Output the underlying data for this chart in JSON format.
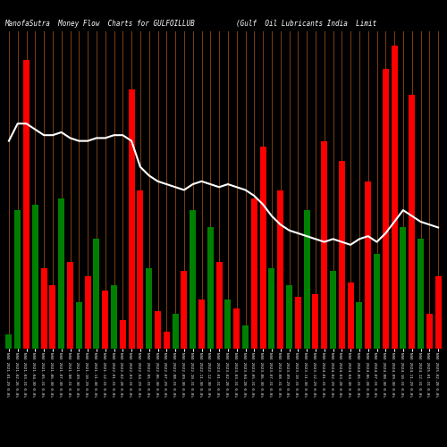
{
  "title": "ManofaSutra  Money Flow  Charts for GULFOILLUB          (Gulf  Oil Lubricants India  Limit",
  "background_color": "#000000",
  "line_color": "#ffffff",
  "bar_colors": [
    "green",
    "green",
    "red",
    "green",
    "red",
    "red",
    "green",
    "red",
    "green",
    "red",
    "green",
    "red",
    "green",
    "red",
    "red",
    "red",
    "green",
    "red",
    "red",
    "green",
    "red",
    "green",
    "red",
    "green",
    "red",
    "green",
    "red",
    "green",
    "red",
    "red",
    "green",
    "red",
    "green",
    "red",
    "green",
    "red",
    "red",
    "green",
    "red",
    "red",
    "green",
    "red",
    "green",
    "red",
    "red",
    "green",
    "red",
    "green",
    "red",
    "red"
  ],
  "bar_heights": [
    0.05,
    0.48,
    1.0,
    0.5,
    0.28,
    0.22,
    0.52,
    0.3,
    0.16,
    0.25,
    0.38,
    0.2,
    0.22,
    0.1,
    0.9,
    0.55,
    0.28,
    0.13,
    0.06,
    0.12,
    0.27,
    0.48,
    0.17,
    0.42,
    0.3,
    0.17,
    0.14,
    0.08,
    0.52,
    0.7,
    0.28,
    0.55,
    0.22,
    0.18,
    0.48,
    0.19,
    0.72,
    0.27,
    0.65,
    0.23,
    0.16,
    0.58,
    0.33,
    0.97,
    1.05,
    0.42,
    0.88,
    0.38,
    0.12,
    0.25
  ],
  "line_values": [
    0.72,
    0.78,
    0.78,
    0.76,
    0.74,
    0.74,
    0.75,
    0.73,
    0.72,
    0.72,
    0.73,
    0.73,
    0.74,
    0.74,
    0.72,
    0.63,
    0.6,
    0.58,
    0.57,
    0.56,
    0.55,
    0.57,
    0.58,
    0.57,
    0.56,
    0.57,
    0.56,
    0.55,
    0.53,
    0.5,
    0.46,
    0.43,
    0.41,
    0.4,
    0.39,
    0.38,
    0.37,
    0.38,
    0.37,
    0.36,
    0.38,
    0.39,
    0.37,
    0.4,
    0.44,
    0.48,
    0.46,
    0.44,
    0.43,
    0.42
  ],
  "n_bars": 50,
  "ylim": [
    0,
    1.1
  ],
  "xlabel_rotation": -90,
  "bar_width": 0.7,
  "vline_color": "#8B4513",
  "x_labels": [
    "NSE 2021-01-29 0.0%",
    "NSE 2021-02-26 0.0%",
    "NSE 2021-03-31 0.0%",
    "NSE 2021-04-30 0.0%",
    "NSE 2021-05-31 0.0%",
    "NSE 2021-06-30 0.0%",
    "NSE 2021-07-30 0.0%",
    "NSE 2021-08-31 0.0%",
    "NSE 2021-09-30 0.0%",
    "NSE 2021-10-29 0.0%",
    "NSE 2021-11-30 0.0%",
    "NSE 2021-12-31 0.0%",
    "NSE 2022-01-31 0.0%",
    "NSE 2022-02-28 0.0%",
    "NSE 2022-03-31 0.0%",
    "NSE 2022-04-29 0.0%",
    "NSE 2022-05-31 0.0%",
    "NSE 2022-06-30 0.0%",
    "NSE 2022-07-29 0.0%",
    "NSE 2022-08-31 0.0%",
    "NSE 2022-09-30 0.0%",
    "NSE 2022-10-31 0.0%",
    "NSE 2022-11-30 0.0%",
    "NSE 2022-12-30 0.0%",
    "NSE 2023-01-31 0.0%",
    "NSE 2023-02-28 0.0%",
    "NSE 2023-03-31 0.0%",
    "NSE 2023-04-28 0.0%",
    "NSE 2023-05-31 0.0%",
    "NSE 2023-06-30 0.0%",
    "NSE 2023-07-31 0.0%",
    "NSE 2023-08-31 0.0%",
    "NSE 2023-09-29 0.0%",
    "NSE 2023-10-31 0.0%",
    "NSE 2023-11-30 0.0%",
    "NSE 2023-12-29 0.0%",
    "NSE 2024-01-31 0.0%",
    "NSE 2024-02-29 0.0%",
    "NSE 2024-03-28 0.0%",
    "NSE 2024-04-30 0.0%",
    "NSE 2024-05-31 0.0%",
    "NSE 2024-06-28 0.0%",
    "NSE 2024-07-31 0.0%",
    "NSE 2024-08-30 0.0%",
    "NSE 2024-09-30 0.0%",
    "NSE 2024-10-31 0.0%",
    "NSE 2024-11-29 0.0%",
    "NSE 2024-12-31 0.0%",
    "NSE 2025-01-31 0.0%",
    "NSE 2025-02-28 0.0%"
  ]
}
